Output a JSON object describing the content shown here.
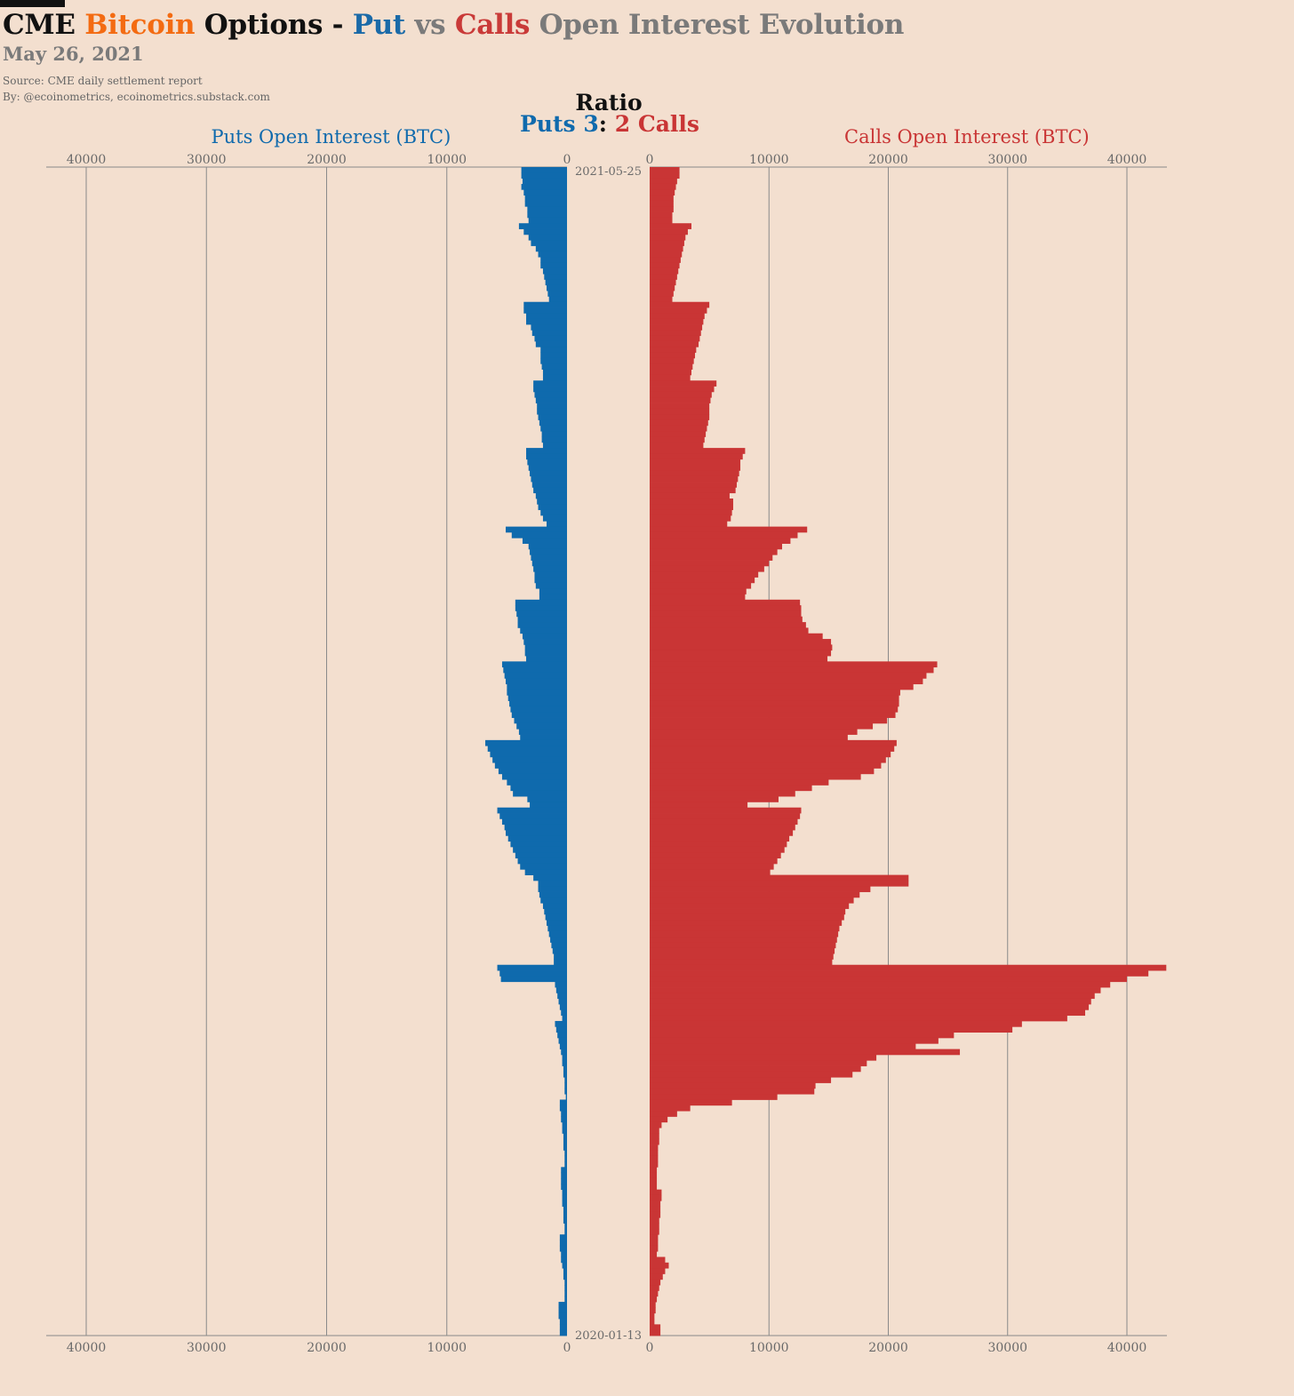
{
  "header": {
    "title_parts": [
      {
        "text": "CME ",
        "color": "#111111"
      },
      {
        "text": "Bitcoin",
        "color": "#f36b12"
      },
      {
        "text": " Options - ",
        "color": "#111111"
      },
      {
        "text": "Put",
        "color": "#1a6aa8"
      },
      {
        "text": " vs ",
        "color": "#7a7a7a"
      },
      {
        "text": "Calls",
        "color": "#c93a38"
      },
      {
        "text": " Open Interest Evolution",
        "color": "#7a7a7a"
      }
    ],
    "subtitle": "May 26, 2021",
    "source": "Source: CME daily settlement report",
    "byline": "By: @ecoinometrics, ecoinometrics.substack.com"
  },
  "ratio": {
    "label": "Ratio",
    "puts_word": "Puts",
    "puts_value": "3",
    "separator": ":",
    "calls_value": "2",
    "calls_word": "Calls"
  },
  "colors": {
    "puts": "#0f6aad",
    "calls": "#c93535",
    "grid": "#8a8a8a",
    "tick_text": "#6a6a6a",
    "background": "#f3dfcf"
  },
  "chart_data": {
    "type": "bar",
    "orientation": "horizontal-mirrored",
    "date_start": "2021-05-25",
    "date_end": "2020-01-13",
    "date_labels": [
      "2021-05-25",
      "2020-01-13"
    ],
    "left_axis_label": "Puts Open Interest (BTC)",
    "right_axis_label": "Calls Open Interest (BTC)",
    "tick_values": [
      40000,
      30000,
      20000,
      10000,
      0
    ],
    "xlim": [
      0,
      43000
    ],
    "grid": true,
    "note": "Each row is one trading day from 2021-05-25 (top) back to 2020-01-13 (bottom); values estimated from the gridlines.",
    "series": [
      {
        "name": "Puts",
        "values": [
          3800,
          3800,
          3700,
          3800,
          3600,
          3500,
          3500,
          3300,
          3300,
          3200,
          4000,
          3600,
          3200,
          3000,
          2600,
          2400,
          2200,
          2200,
          2000,
          1900,
          1800,
          1700,
          1600,
          1500,
          3600,
          3600,
          3400,
          3400,
          3000,
          2900,
          2700,
          2600,
          2200,
          2200,
          2200,
          2100,
          2000,
          2000,
          2800,
          2800,
          2700,
          2600,
          2500,
          2500,
          2400,
          2300,
          2200,
          2100,
          2100,
          2000,
          3400,
          3400,
          3300,
          3200,
          3100,
          3000,
          2900,
          2800,
          2600,
          2500,
          2400,
          2200,
          2000,
          1700,
          5100,
          4600,
          3700,
          3200,
          3100,
          3000,
          2900,
          2800,
          2700,
          2700,
          2600,
          2300,
          2300,
          4300,
          4300,
          4200,
          4100,
          4100,
          3900,
          3700,
          3600,
          3500,
          3500,
          3400,
          5400,
          5300,
          5200,
          5100,
          5000,
          5000,
          4900,
          4800,
          4700,
          4600,
          4400,
          4200,
          4000,
          3900,
          6800,
          6600,
          6400,
          6200,
          6000,
          5700,
          5400,
          5000,
          4700,
          4500,
          3300,
          3100,
          5800,
          5600,
          5400,
          5200,
          5100,
          4900,
          4700,
          4500,
          4300,
          4100,
          3900,
          3500,
          2800,
          2400,
          2400,
          2300,
          2200,
          2000,
          1900,
          1800,
          1700,
          1600,
          1500,
          1400,
          1300,
          1200,
          1100,
          1100,
          5800,
          5600,
          5500,
          1000,
          900,
          800,
          700,
          600,
          500,
          400,
          1000,
          900,
          800,
          700,
          600,
          500,
          400,
          400,
          300,
          300,
          200,
          200,
          200,
          100,
          600,
          600,
          500,
          500,
          400,
          400,
          300,
          300,
          300,
          200,
          200,
          200,
          500,
          500,
          500,
          500,
          400,
          400,
          400,
          300,
          300,
          300,
          200,
          200,
          600,
          600,
          600,
          500,
          500,
          400,
          300,
          300,
          200,
          200,
          200,
          200,
          700,
          700,
          700,
          600,
          600,
          600
        ]
      },
      {
        "name": "Calls",
        "values": [
          2500,
          2500,
          2300,
          2200,
          2100,
          2000,
          2000,
          2000,
          1900,
          1900,
          3500,
          3200,
          3000,
          2900,
          2800,
          2700,
          2600,
          2500,
          2400,
          2300,
          2200,
          2100,
          2000,
          1900,
          5000,
          4800,
          4600,
          4500,
          4400,
          4300,
          4200,
          4100,
          3900,
          3800,
          3700,
          3600,
          3500,
          3400,
          5600,
          5400,
          5200,
          5100,
          5000,
          5000,
          5000,
          4900,
          4800,
          4700,
          4600,
          4500,
          8000,
          7800,
          7600,
          7600,
          7500,
          7400,
          7300,
          7200,
          6700,
          7000,
          7000,
          6900,
          6800,
          6500,
          13200,
          12400,
          11800,
          11100,
          10700,
          10300,
          10000,
          9600,
          9100,
          8800,
          8500,
          8100,
          8000,
          12600,
          12700,
          12700,
          12800,
          13100,
          13300,
          14500,
          15200,
          15300,
          15200,
          14900,
          24100,
          23800,
          23200,
          22900,
          22100,
          21000,
          20900,
          20900,
          20800,
          20600,
          19900,
          18700,
          17400,
          16600,
          20700,
          20500,
          20200,
          19800,
          19400,
          18800,
          17700,
          15000,
          13600,
          12200,
          10800,
          8200,
          12700,
          12600,
          12400,
          12200,
          12000,
          11700,
          11500,
          11300,
          11000,
          10700,
          10400,
          10100,
          21700,
          21700,
          18500,
          17600,
          17100,
          16700,
          16400,
          16300,
          16100,
          15900,
          15800,
          15700,
          15600,
          15500,
          15400,
          15300,
          43300,
          41800,
          40000,
          38600,
          37800,
          37300,
          37000,
          36800,
          36500,
          35000,
          31200,
          30400,
          25500,
          24200,
          22300,
          26000,
          19000,
          18200,
          17700,
          17000,
          15200,
          13900,
          13800,
          10700,
          6900,
          3400,
          2300,
          1500,
          1000,
          800,
          800,
          800,
          700,
          700,
          700,
          700,
          600,
          600,
          600,
          600,
          1000,
          1000,
          900,
          900,
          900,
          800,
          800,
          800,
          700,
          700,
          700,
          600,
          1300,
          1600,
          1300,
          1100,
          900,
          800,
          700,
          600,
          500,
          500,
          400,
          400,
          900,
          900,
          800,
          800,
          700,
          700
        ]
      }
    ]
  }
}
